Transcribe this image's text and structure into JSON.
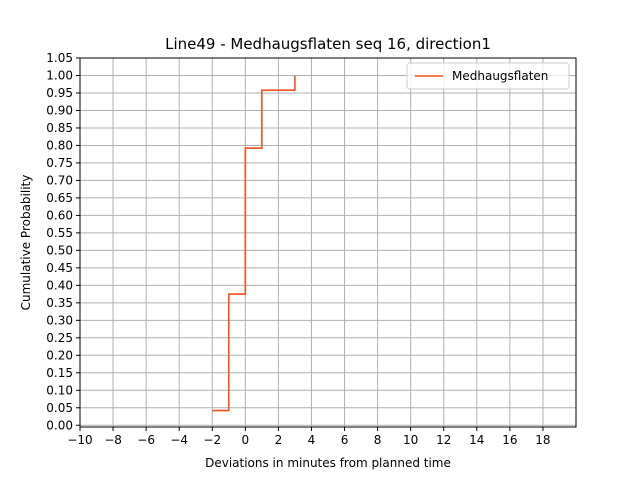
{
  "chart_data": {
    "type": "line",
    "title": "Line49 - Medhaugsflaten seq 16, direction1",
    "xlabel": "Deviations in minutes from planned time",
    "ylabel": "Cumulative Probability",
    "xlim": [
      -10,
      20
    ],
    "ylim": [
      -0.005,
      1.05
    ],
    "xticks": [
      -10,
      -8,
      -6,
      -4,
      -2,
      0,
      2,
      4,
      6,
      8,
      10,
      12,
      14,
      16,
      18
    ],
    "xtick_labels": [
      "−10",
      "−8",
      "−6",
      "−4",
      "−2",
      "0",
      "2",
      "4",
      "6",
      "8",
      "10",
      "12",
      "14",
      "16",
      "18"
    ],
    "yticks": [
      0,
      0.05,
      0.1,
      0.15,
      0.2,
      0.25,
      0.3,
      0.35,
      0.4,
      0.45,
      0.5,
      0.55,
      0.6,
      0.65,
      0.7,
      0.75,
      0.8,
      0.85,
      0.9,
      0.95,
      1.0,
      1.05
    ],
    "ytick_labels": [
      "0.00",
      "0.05",
      "0.10",
      "0.15",
      "0.20",
      "0.25",
      "0.30",
      "0.35",
      "0.40",
      "0.45",
      "0.50",
      "0.55",
      "0.60",
      "0.65",
      "0.70",
      "0.75",
      "0.80",
      "0.85",
      "0.90",
      "0.95",
      "1.00",
      "1.05"
    ],
    "grid": true,
    "legend_position": "top-right",
    "series": [
      {
        "name": "Medhaugsflaten",
        "color": "#f4511e",
        "step": true,
        "x": [
          -2,
          -1,
          0,
          1,
          3
        ],
        "y": [
          0.042,
          0.375,
          0.792,
          0.958,
          1.0
        ]
      }
    ]
  }
}
